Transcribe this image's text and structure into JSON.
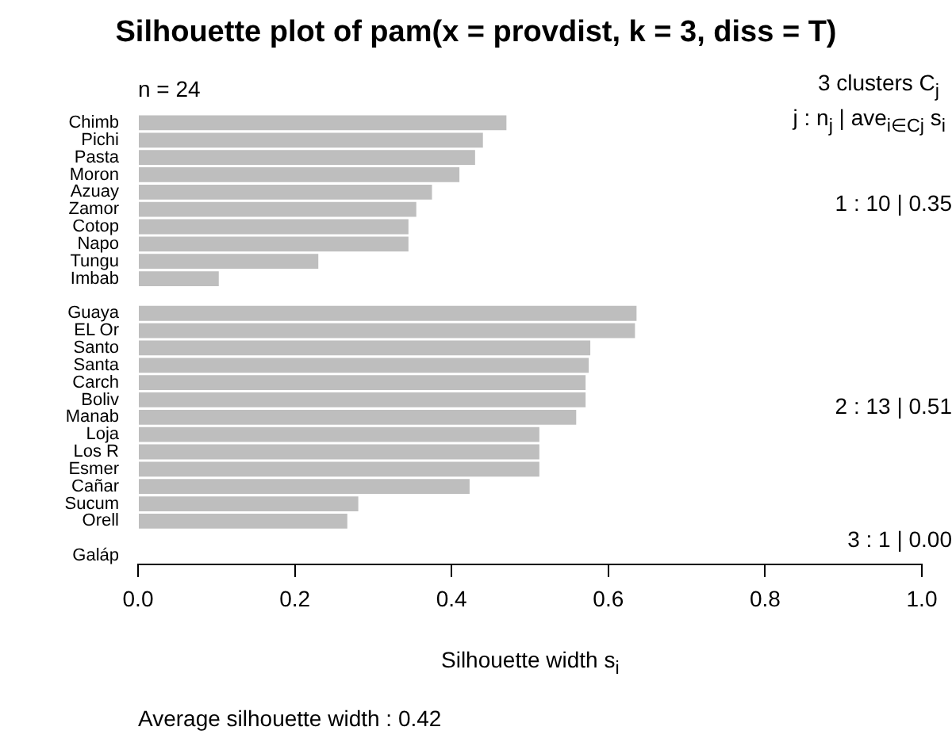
{
  "chart_data": {
    "type": "bar",
    "orientation": "horizontal",
    "title": "Silhouette plot of pam(x = provdist, k = 3, diss = T)",
    "xlabel": "Silhouette width s$_{i}$",
    "categories": [
      "Chimb",
      "Pichi",
      "Pasta",
      "Moron",
      "Azuay",
      "Zamor",
      "Cotop",
      "Napo",
      "Tungu",
      "Imbab",
      null,
      "Guaya",
      "EL Or",
      "Santo",
      "Santa",
      "Carch",
      "Boliv",
      "Manab",
      "Loja",
      "Los R",
      "Esmer",
      "Cañar",
      "Sucum",
      "Orell",
      null,
      "Galáp"
    ],
    "values": [
      0.47,
      0.44,
      0.43,
      0.41,
      0.375,
      0.355,
      0.345,
      0.345,
      0.23,
      0.103,
      null,
      0.636,
      0.634,
      0.577,
      0.575,
      0.571,
      0.571,
      0.559,
      0.512,
      0.512,
      0.512,
      0.423,
      0.281,
      0.267,
      null,
      0
    ],
    "color": "#bebebe",
    "xlim": [
      0,
      1
    ],
    "xticks": [
      {
        "value": 0,
        "label": "0.0"
      },
      0.2,
      0.4,
      0.6,
      0.8,
      {
        "value": 1,
        "label": "1.0"
      }
    ],
    "annotations": [
      "n = 24",
      "3  clusters  C$_{j}$",
      "j :  n$_{j}$ | ave$_{i∈Cj}$ s$_{i}$",
      "1 :  10  |  0.35",
      "2 :  13  |  0.51",
      "3 :  1  |  0.00",
      "Average silhouette width :  0.42"
    ]
  }
}
